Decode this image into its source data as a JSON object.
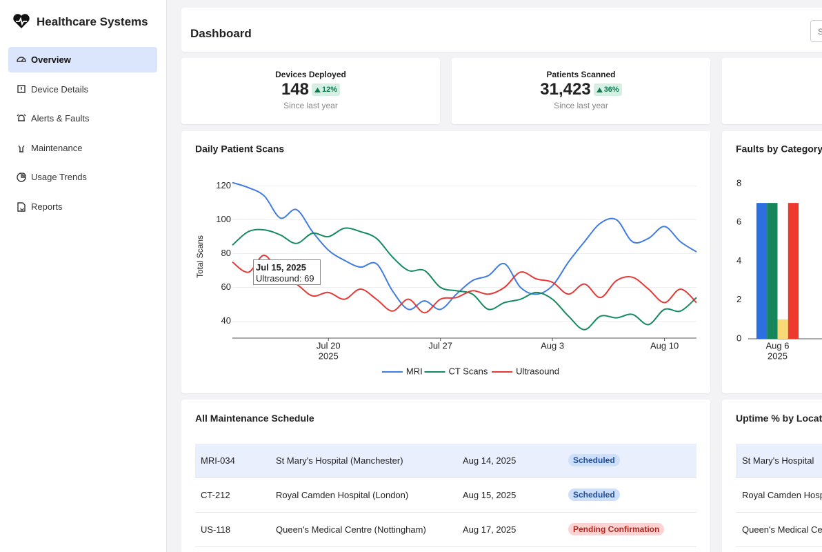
{
  "sidebar": {
    "brand": "Healthcare Systems",
    "nav": [
      "Overview",
      "Device Details",
      "Alerts & Faults",
      "Maintenance",
      "Usage Trends",
      "Reports"
    ]
  },
  "header": {
    "title": "Dashboard",
    "search_placeholder": "Search"
  },
  "kpis": [
    {
      "label": "Devices Deployed",
      "value": "148",
      "change": "12%",
      "note": "Since last year"
    },
    {
      "label": "Patients Scanned",
      "value": "31,423",
      "change": "36%",
      "note": "Since last year"
    }
  ],
  "chart_data": [
    {
      "type": "line",
      "title": "Daily Patient Scans",
      "y_label": "Total Scans",
      "x": [
        "2025-07-14",
        "2025-07-15",
        "2025-07-16",
        "2025-07-17",
        "2025-07-18",
        "2025-07-19",
        "2025-07-20",
        "2025-07-21",
        "2025-07-22",
        "2025-07-23",
        "2025-07-24",
        "2025-07-25",
        "2025-07-26",
        "2025-07-27",
        "2025-07-28",
        "2025-07-29",
        "2025-07-30",
        "2025-07-31",
        "2025-08-01",
        "2025-08-02",
        "2025-08-03",
        "2025-08-04",
        "2025-08-05",
        "2025-08-06",
        "2025-08-07",
        "2025-08-08",
        "2025-08-09",
        "2025-08-10",
        "2025-08-11",
        "2025-08-12"
      ],
      "series": [
        {
          "name": "MRI",
          "color": "#3f7be0",
          "values": [
            122,
            119,
            114,
            101,
            106,
            93,
            82,
            76,
            72,
            74,
            58,
            47,
            52,
            47,
            56,
            64,
            67,
            74,
            60,
            56,
            61,
            75,
            87,
            98,
            100,
            87,
            89,
            96,
            87,
            81
          ]
        },
        {
          "name": "CT Scans",
          "color": "#148a5e",
          "values": [
            85,
            93,
            94,
            91,
            86,
            92,
            90,
            95,
            93,
            89,
            78,
            70,
            70,
            60,
            58,
            56,
            47,
            51,
            53,
            57,
            53,
            43,
            35,
            43,
            42,
            44,
            38,
            47,
            46,
            54
          ]
        },
        {
          "name": "Ultrasound",
          "color": "#e53935",
          "values": [
            75,
            69,
            79,
            67,
            62,
            55,
            57,
            53,
            59,
            53,
            46,
            53,
            45,
            53,
            54,
            58,
            56,
            60,
            69,
            65,
            63,
            56,
            62,
            54,
            64,
            66,
            59,
            51,
            59,
            51
          ]
        }
      ],
      "xlim": [
        "2025-07-14",
        "2025-08-12"
      ],
      "ylim": [
        30,
        130
      ],
      "yticks": [
        40,
        60,
        80,
        100,
        120
      ],
      "xticks": [
        {
          "value": "2025-07-20",
          "label": "Jul 20",
          "sublabel": "2025"
        },
        {
          "value": "2025-07-27",
          "label": "Jul 27"
        },
        {
          "value": "2025-08-03",
          "label": "Aug 3"
        },
        {
          "value": "2025-08-10",
          "label": "Aug 10"
        }
      ],
      "grid": true,
      "legend": "bottom",
      "tooltip": {
        "title": "Jul 15, 2025",
        "text": "Ultrasound: 69"
      }
    },
    {
      "type": "bar",
      "title": "Faults by Category",
      "categories": [
        "Aug 6"
      ],
      "category_sublabels": [
        "2025"
      ],
      "series": [
        {
          "color": "#2b6fe0",
          "values": [
            7
          ]
        },
        {
          "color": "#15855b",
          "values": [
            7
          ]
        },
        {
          "color": "#f8d877",
          "values": [
            1
          ]
        },
        {
          "color": "#ee3a2d",
          "values": [
            7
          ]
        }
      ],
      "ylim": [
        0,
        8
      ],
      "yticks": [
        0,
        2,
        4,
        6,
        8
      ],
      "grid": false
    }
  ],
  "maintenance": {
    "title": "All Maintenance Schedule",
    "rows": [
      {
        "device": "MRI-034",
        "location": "St Mary's Hospital (Manchester)",
        "date": "Aug 14, 2025",
        "status": "Scheduled",
        "status_bg": "#cddff9",
        "status_fg": "#1f4e9e"
      },
      {
        "device": "CT-212",
        "location": "Royal Camden Hospital (London)",
        "date": "Aug 15, 2025",
        "status": "Scheduled",
        "status_bg": "#cddff9",
        "status_fg": "#1f4e9e"
      },
      {
        "device": "US-118",
        "location": "Queen's Medical Centre (Nottingham)",
        "date": "Aug 17, 2025",
        "status": "Pending Confirmation",
        "status_bg": "#fbd3d3",
        "status_fg": "#b3261e"
      }
    ]
  },
  "uptime": {
    "title": "Uptime % by Location",
    "rows": [
      "St Mary's Hospital",
      "Royal Camden Hospital",
      "Queen's Medical Centre"
    ]
  }
}
